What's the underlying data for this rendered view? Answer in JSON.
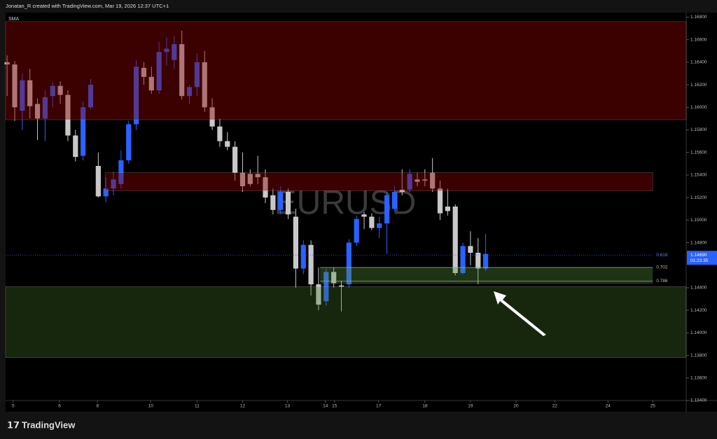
{
  "header": "Jonatan_R created with TradingView.com, Mar 19, 2026 12:37 UTC+1",
  "footer": {
    "logo": "TradingView"
  },
  "chart_data": {
    "type": "candlestick",
    "indicator": "SMA",
    "watermark": "EURUSD",
    "up_color": "#2962ff",
    "down_color": "#c8c8c8",
    "open": [
      1.164,
      1.1638,
      1.1597,
      1.1624,
      1.1603,
      1.159,
      1.161,
      1.1619,
      1.1611,
      1.1575,
      1.1557,
      1.16,
      1.1548,
      1.1521,
      1.1528,
      1.1532,
      1.1553,
      1.1585,
      1.1635,
      1.1627,
      1.1615,
      1.1649,
      1.1642,
      1.1656,
      1.161,
      1.1618,
      1.164,
      1.16,
      1.1583,
      1.157,
      1.1565,
      1.1542,
      1.1541,
      1.1541,
      1.1538,
      1.1522,
      1.1509,
      1.1525,
      1.1503,
      1.1457,
      1.1478,
      1.1443,
      1.1428,
      1.1454,
      1.1442,
      1.1443,
      1.148,
      1.1505,
      1.1503,
      1.1493,
      1.1497,
      1.151,
      1.1527,
      1.1527,
      1.1536,
      1.1536,
      1.1542,
      1.1528,
      1.1512,
      1.1512,
      1.1453,
      1.1477,
      1.1471,
      1.1457
    ],
    "high": [
      1.1646,
      1.1641,
      1.163,
      1.1634,
      1.1608,
      1.1615,
      1.1622,
      1.1623,
      1.1615,
      1.158,
      1.1605,
      1.1625,
      1.156,
      1.1538,
      1.1543,
      1.1562,
      1.1588,
      1.1642,
      1.164,
      1.1636,
      1.1658,
      1.1662,
      1.1663,
      1.1668,
      1.162,
      1.1648,
      1.165,
      1.1608,
      1.159,
      1.1578,
      1.157,
      1.156,
      1.1545,
      1.1557,
      1.1545,
      1.1528,
      1.153,
      1.1528,
      1.151,
      1.1482,
      1.1482,
      1.1458,
      1.1457,
      1.1458,
      1.1446,
      1.1483,
      1.1504,
      1.1507,
      1.1506,
      1.1503,
      1.1525,
      1.153,
      1.1545,
      1.1545,
      1.1542,
      1.1545,
      1.1555,
      1.1535,
      1.1528,
      1.1514,
      1.148,
      1.149,
      1.1484,
      1.1488
    ],
    "low": [
      1.161,
      1.1588,
      1.158,
      1.159,
      1.1571,
      1.157,
      1.16,
      1.1603,
      1.157,
      1.1552,
      1.1553,
      1.1598,
      1.152,
      1.1516,
      1.1522,
      1.1528,
      1.155,
      1.158,
      1.162,
      1.1612,
      1.1612,
      1.1637,
      1.1634,
      1.1607,
      1.1603,
      1.161,
      1.1596,
      1.158,
      1.1565,
      1.1562,
      1.1535,
      1.1525,
      1.153,
      1.1532,
      1.1515,
      1.1505,
      1.1505,
      1.1501,
      1.144,
      1.1452,
      1.1433,
      1.142,
      1.1424,
      1.144,
      1.1419,
      1.144,
      1.1477,
      1.1492,
      1.1491,
      1.1484,
      1.147,
      1.1508,
      1.1522,
      1.1525,
      1.153,
      1.153,
      1.1525,
      1.15,
      1.1504,
      1.1451,
      1.1452,
      1.146,
      1.1443,
      1.1455
    ],
    "close": [
      1.1638,
      1.16,
      1.1624,
      1.1601,
      1.159,
      1.1609,
      1.1619,
      1.1611,
      1.1575,
      1.1556,
      1.16,
      1.162,
      1.1521,
      1.1528,
      1.1536,
      1.1553,
      1.1585,
      1.1636,
      1.1627,
      1.1615,
      1.1649,
      1.1652,
      1.1656,
      1.161,
      1.1618,
      1.164,
      1.16,
      1.1583,
      1.157,
      1.1565,
      1.1542,
      1.153,
      1.1532,
      1.1538,
      1.152,
      1.1509,
      1.1525,
      1.1505,
      1.1457,
      1.1478,
      1.1443,
      1.1425,
      1.1454,
      1.1444,
      1.1441,
      1.148,
      1.1501,
      1.1503,
      1.1493,
      1.1497,
      1.1522,
      1.1525,
      1.1525,
      1.1541,
      1.1534,
      1.1535,
      1.1528,
      1.1506,
      1.1508,
      1.1453,
      1.1477,
      1.1471,
      1.1457,
      1.147
    ],
    "xlim": [
      -0.2,
      89.4
    ],
    "xticks": [
      {
        "value": 0.8,
        "label": "5"
      },
      {
        "value": 6.9,
        "label": "6"
      },
      {
        "value": 11.9,
        "label": "8"
      },
      {
        "value": 18.9,
        "label": "10"
      },
      {
        "value": 25.0,
        "label": "11"
      },
      {
        "value": 31.0,
        "label": "12"
      },
      {
        "value": 36.9,
        "label": "13"
      },
      {
        "value": 41.9,
        "label": "14"
      },
      {
        "value": 43.1,
        "label": "15"
      },
      {
        "value": 48.9,
        "label": "17"
      },
      {
        "value": 55.0,
        "label": "18"
      },
      {
        "value": 61.0,
        "label": "19"
      },
      {
        "value": 67.0,
        "label": "20"
      },
      {
        "value": 72.1,
        "label": "22"
      },
      {
        "value": 79.1,
        "label": "24"
      },
      {
        "value": 85.0,
        "label": "25"
      }
    ],
    "ylim": [
      1.134,
      1.1684
    ],
    "yticks": [
      {
        "value": 1.168,
        "label": "1.16800"
      },
      {
        "value": 1.166,
        "label": "1.16600"
      },
      {
        "value": 1.164,
        "label": "1.16400"
      },
      {
        "value": 1.162,
        "label": "1.16200"
      },
      {
        "value": 1.16,
        "label": "1.16000"
      },
      {
        "value": 1.158,
        "label": "1.15800"
      },
      {
        "value": 1.156,
        "label": "1.15600"
      },
      {
        "value": 1.154,
        "label": "1.15400"
      },
      {
        "value": 1.152,
        "label": "1.15200"
      },
      {
        "value": 1.15,
        "label": "1.15000"
      },
      {
        "value": 1.148,
        "label": "1.14800"
      },
      {
        "value": 1.144,
        "label": "1.14400"
      },
      {
        "value": 1.142,
        "label": "1.14200"
      },
      {
        "value": 1.14,
        "label": "1.14000"
      },
      {
        "value": 1.138,
        "label": "1.13800"
      },
      {
        "value": 1.136,
        "label": "1.13600"
      },
      {
        "value": 1.134,
        "label": "1.13400"
      }
    ],
    "zones": [
      {
        "xlim": [
          -0.2,
          89.4
        ],
        "ylim": [
          1.1589,
          1.1676
        ],
        "color": "rgba(140,0,0,0.42)"
      },
      {
        "xlim": [
          12.9,
          85.0
        ],
        "ylim": [
          1.1526,
          1.1542
        ],
        "color": "rgba(140,0,0,0.42)"
      },
      {
        "xlim": [
          -0.2,
          89.4
        ],
        "ylim": [
          1.1378,
          1.1441
        ],
        "color": "rgba(70,120,45,0.32)"
      }
    ],
    "fib": {
      "xlim": [
        41.2,
        85.0
      ],
      "levels": [
        {
          "value": 1.1469,
          "label": "0.618"
        },
        {
          "value": 1.1458,
          "label": "0.702"
        },
        {
          "value": 1.1446,
          "label": "0.786"
        }
      ]
    },
    "last_price": {
      "value": 1.1469,
      "label": "1.14690"
    },
    "countdown": "01:23:35"
  }
}
